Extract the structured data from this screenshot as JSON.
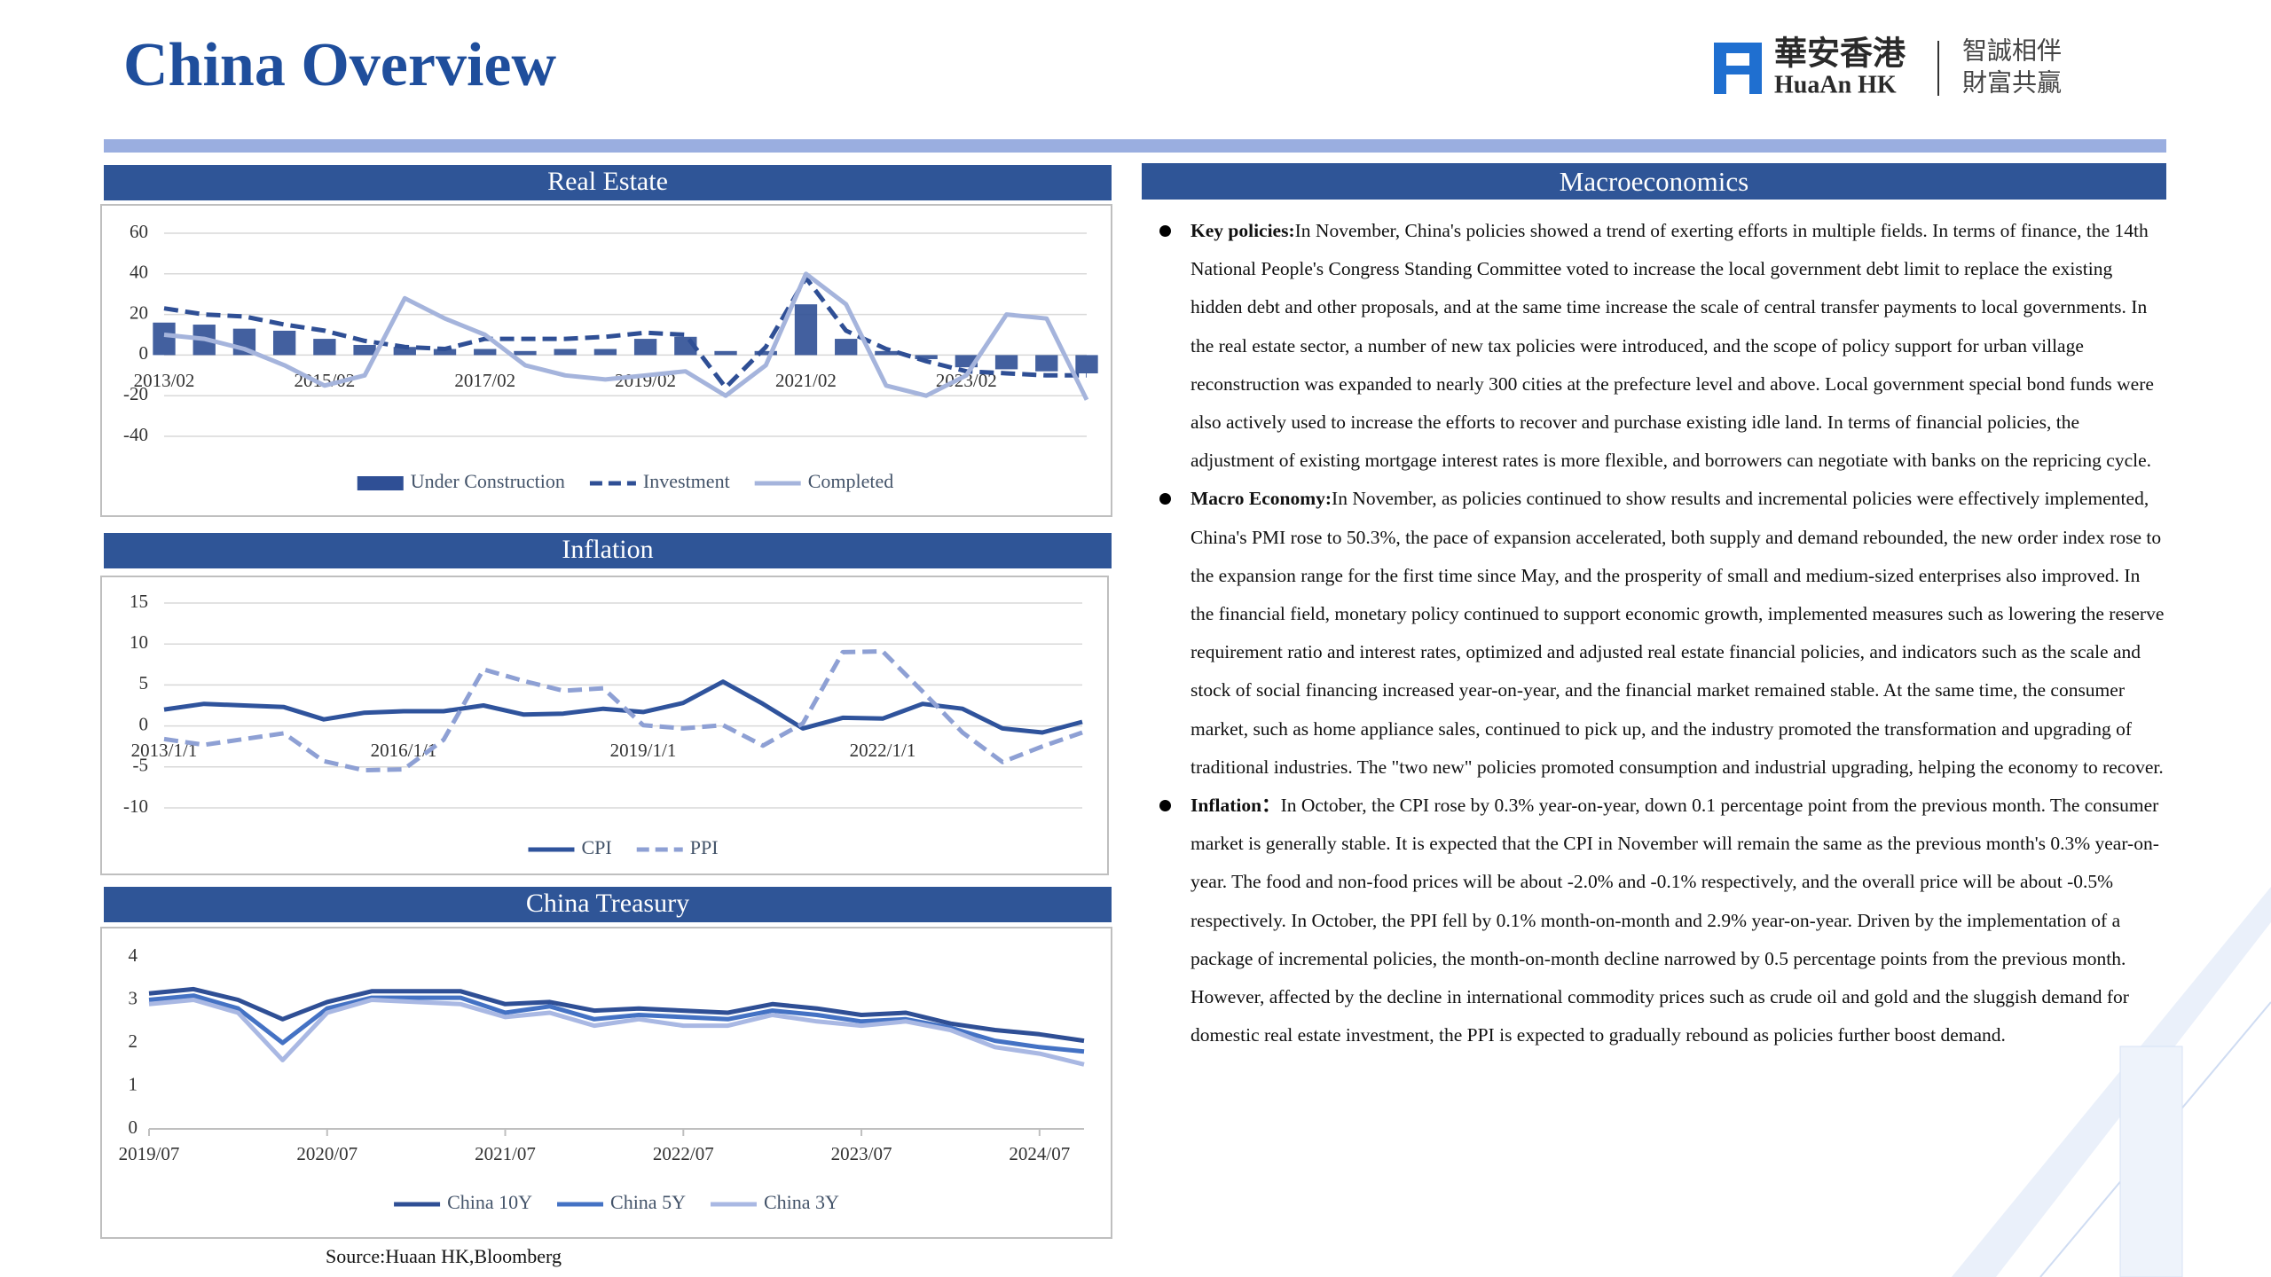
{
  "header": {
    "title": "China Overview",
    "logo_cn": "華安香港",
    "logo_en": "HuaAn HK",
    "slogan_1": "智誠相伴",
    "slogan_2": "財富共贏"
  },
  "chart_data": [
    {
      "type": "combo",
      "title": "Real Estate",
      "grid": true,
      "legend": "bottom",
      "categories": [
        "2013/02",
        null,
        null,
        null,
        "2015/02",
        null,
        null,
        null,
        "2017/02",
        null,
        null,
        null,
        "2019/02",
        null,
        null,
        null,
        "2021/02",
        null,
        null,
        null,
        "2023/02",
        null,
        null,
        null
      ],
      "series": [
        {
          "name": "Under Construction",
          "type": "bar",
          "color": "#2f4f95",
          "values": [
            16,
            15,
            13,
            12,
            8,
            5,
            4,
            3,
            3,
            2,
            3,
            3,
            8,
            9,
            2,
            2,
            25,
            8,
            2,
            -2,
            -6,
            -7,
            -8,
            -9
          ]
        },
        {
          "name": "Investment",
          "type": "line",
          "dash": true,
          "color": "#2f4f95",
          "values": [
            23,
            20,
            19,
            15,
            12,
            7,
            4,
            3,
            8,
            8,
            8,
            9,
            11,
            10,
            -16,
            4,
            38,
            12,
            3,
            -3,
            -8,
            -9,
            -10,
            -10
          ]
        },
        {
          "name": "Completed",
          "type": "line",
          "color": "#a5b4dc",
          "values": [
            10,
            8,
            3,
            -5,
            -15,
            -10,
            28,
            18,
            10,
            -5,
            -10,
            -12,
            -10,
            -8,
            -20,
            -5,
            40,
            25,
            -15,
            -20,
            -10,
            20,
            18,
            -22
          ]
        }
      ],
      "ylim": [
        -40,
        60
      ],
      "yticks": [
        -40,
        -20,
        0,
        20,
        40,
        60
      ]
    },
    {
      "type": "line",
      "title": "Inflation",
      "grid": true,
      "legend": "bottom",
      "categories": [
        "2013/1/1",
        null,
        null,
        null,
        null,
        null,
        "2016/1/1",
        null,
        null,
        null,
        null,
        null,
        "2019/1/1",
        null,
        null,
        null,
        null,
        null,
        "2022/1/1",
        null,
        null,
        null,
        null,
        null
      ],
      "series": [
        {
          "name": "CPI",
          "color": "#2f539c",
          "values": [
            2.0,
            2.7,
            2.5,
            2.3,
            0.8,
            1.6,
            1.8,
            1.8,
            2.5,
            1.4,
            1.5,
            2.1,
            1.7,
            2.8,
            5.4,
            2.7,
            -0.3,
            1.0,
            0.9,
            2.7,
            2.1,
            -0.3,
            -0.8,
            0.5
          ]
        },
        {
          "name": "PPI",
          "dash": true,
          "color": "#8ea0d4",
          "values": [
            -1.6,
            -2.3,
            -1.6,
            -0.9,
            -4.3,
            -5.4,
            -5.3,
            -1.7,
            6.9,
            5.5,
            4.3,
            4.6,
            0.1,
            -0.3,
            0.1,
            -2.4,
            0.3,
            9.0,
            9.1,
            4.2,
            -0.8,
            -4.4,
            -2.5,
            -0.8
          ]
        }
      ],
      "ylim": [
        -10,
        15
      ],
      "yticks": [
        -10,
        -5,
        0,
        5,
        10,
        15
      ]
    },
    {
      "type": "line",
      "title": "China Treasury",
      "grid": false,
      "legend": "bottom",
      "categories": [
        "2019/07",
        null,
        null,
        null,
        "2020/07",
        null,
        null,
        null,
        "2021/07",
        null,
        null,
        null,
        "2022/07",
        null,
        null,
        null,
        "2023/07",
        null,
        null,
        null,
        "2024/07",
        null
      ],
      "series": [
        {
          "name": "China 10Y",
          "color": "#2f4f95",
          "values": [
            3.15,
            3.25,
            3.0,
            2.55,
            2.95,
            3.2,
            3.2,
            3.2,
            2.9,
            2.95,
            2.75,
            2.8,
            2.75,
            2.7,
            2.9,
            2.8,
            2.65,
            2.7,
            2.45,
            2.3,
            2.2,
            2.05
          ]
        },
        {
          "name": "China 5Y",
          "color": "#4472c4",
          "values": [
            3.0,
            3.1,
            2.8,
            2.0,
            2.8,
            3.05,
            3.05,
            3.05,
            2.7,
            2.85,
            2.55,
            2.65,
            2.6,
            2.55,
            2.75,
            2.65,
            2.5,
            2.55,
            2.35,
            2.05,
            1.9,
            1.8
          ]
        },
        {
          "name": "China 3Y",
          "color": "#a9b8e3",
          "values": [
            2.9,
            3.0,
            2.7,
            1.6,
            2.7,
            3.0,
            2.95,
            2.9,
            2.6,
            2.7,
            2.4,
            2.55,
            2.4,
            2.4,
            2.65,
            2.5,
            2.4,
            2.5,
            2.3,
            1.9,
            1.75,
            1.5
          ]
        }
      ],
      "ylim": [
        0,
        4
      ],
      "yticks": [
        0,
        1,
        2,
        3,
        4
      ]
    }
  ],
  "source": "Source:Huaan HK,Bloomberg",
  "macro": {
    "title": "Macroeconomics",
    "items": [
      {
        "label": "Key policies:",
        "text": "In November, China's policies showed a trend of exerting efforts in multiple fields. In terms of finance, the 14th National People's Congress Standing Committee voted to increase the local government debt limit to replace the existing hidden debt and other proposals, and at the same time increase the scale of central transfer payments to local governments. In the real estate sector, a number of new tax policies were introduced, and the scope of policy support for urban village reconstruction was expanded to nearly 300 cities at the prefecture level and above. Local government special bond funds were also actively used to increase the efforts to recover and purchase existing idle land. In terms of financial policies, the adjustment of existing mortgage interest rates is more flexible, and borrowers can negotiate with banks on the repricing cycle."
      },
      {
        "label": "Macro Economy:",
        "text": "In November, as policies continued to show results and incremental policies were effectively implemented, China's PMI rose to 50.3%, the pace of expansion accelerated, both supply and demand rebounded, the new order index rose to the expansion range for the first time since May, and the prosperity of small and medium-sized enterprises also improved. In the financial field, monetary policy continued to support economic growth, implemented measures such as lowering the reserve requirement ratio and interest rates, optimized and adjusted real estate financial policies, and indicators such as the scale and stock of social financing increased year-on-year, and the financial market remained stable. At the same time, the consumer market, such as home appliance sales, continued to pick up, and the industry promoted the transformation and upgrading of traditional industries. The \"two new\" policies promoted consumption and industrial upgrading, helping the economy to recover."
      },
      {
        "label": "Inflation：",
        "text": "In October, the CPI rose by 0.3% year-on-year, down 0.1 percentage point from the previous month. The consumer market is generally stable. It is expected that the CPI in November will remain the same as the previous month's 0.3% year-on-year. The food and non-food prices will be about -2.0% and -0.1% respectively, and the overall price will be about -0.5% respectively. In October, the PPI fell by 0.1% month-on-month and 2.9% year-on-year. Driven by the implementation of a package of incremental policies, the month-on-month decline narrowed by 0.5 percentage points from the previous month. However, affected by the decline in international commodity prices such as crude oil and gold and the sluggish demand for domestic real estate investment, the PPI is expected to gradually rebound as policies further boost demand."
      }
    ]
  }
}
